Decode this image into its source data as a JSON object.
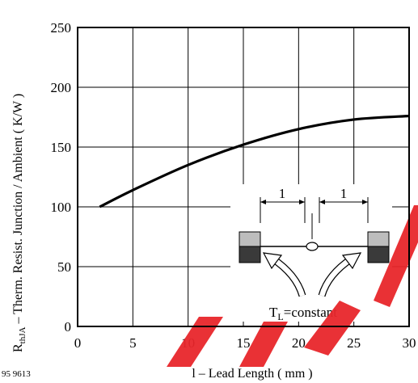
{
  "figure_id": "95 9613",
  "watermark_color": "#e8262b",
  "chart_data": {
    "type": "line",
    "ylabel_main": "R",
    "ylabel_sub": "thJA",
    "ylabel_rest": " – Therm. Resist. Junction / Ambient ( K/W )",
    "xlabel": "l – Lead Length ( mm )",
    "xlim": [
      0,
      30
    ],
    "ylim": [
      0,
      250
    ],
    "xticks": [
      0,
      5,
      10,
      15,
      20,
      25,
      30
    ],
    "yticks": [
      0,
      50,
      100,
      150,
      200,
      250
    ],
    "grid": true,
    "series": [
      {
        "x": [
          2,
          5,
          10,
          15,
          20,
          25,
          30
        ],
        "y": [
          100,
          114,
          135,
          152,
          165,
          173,
          176
        ]
      }
    ],
    "inset": {
      "dimension_label_left": "1",
      "dimension_label_right": "1",
      "condition_main": "T",
      "condition_sub": "L",
      "condition_rest": "=constant"
    }
  }
}
